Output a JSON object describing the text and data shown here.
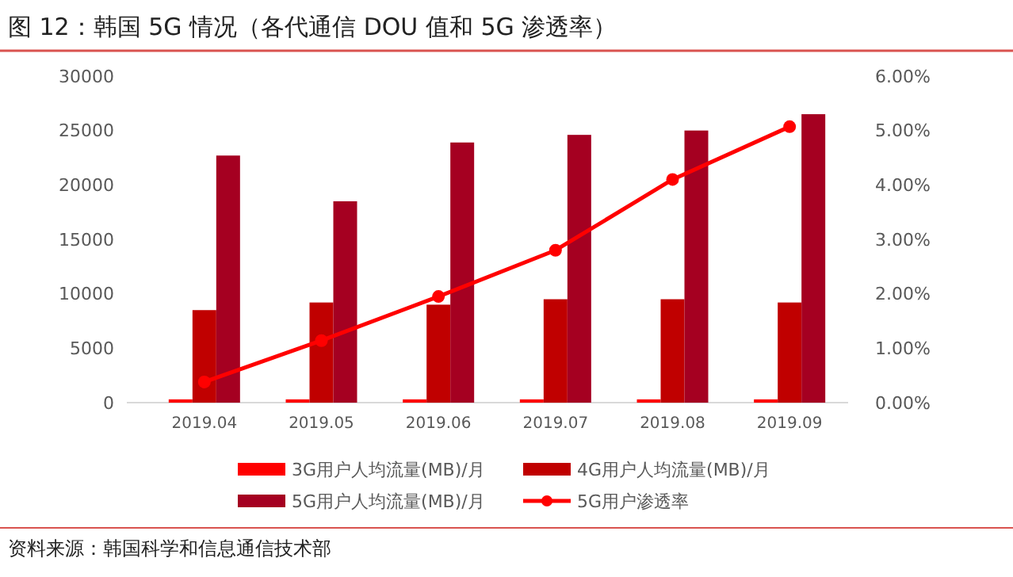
{
  "chart_data": {
    "type": "bar",
    "title": "图 12：韩国 5G 情况（各代通信 DOU 值和 5G 渗透率）",
    "annotations": [
      "资料来源：韩国科学和信息通信技术部"
    ],
    "categories": [
      "2019.04",
      "2019.05",
      "2019.06",
      "2019.07",
      "2019.08",
      "2019.09"
    ],
    "series": [
      {
        "name": "3G用户人均流量(MB)/月",
        "color": "#ff0000",
        "values": [
          300,
          300,
          300,
          300,
          300,
          300
        ]
      },
      {
        "name": "4G用户人均流量(MB)/月",
        "color": "#c00000",
        "values": [
          8500,
          9200,
          9000,
          9500,
          9500,
          9200
        ]
      },
      {
        "name": "5G用户人均流量(MB)/月",
        "color": "#a50021",
        "values": [
          22700,
          18500,
          23900,
          24600,
          25000,
          26500
        ]
      },
      {
        "name": "5G用户渗透率",
        "type": "line",
        "axis": "y2",
        "color": "#ff0000",
        "marker": "circle",
        "values": [
          0.38,
          1.14,
          1.95,
          2.8,
          4.1,
          5.07
        ]
      }
    ],
    "ylim": [
      0,
      30000
    ],
    "yticks": [
      0,
      5000,
      10000,
      15000,
      20000,
      25000,
      30000
    ],
    "y2lim": [
      0,
      6
    ],
    "y2ticks": [
      {
        "value": 0,
        "label": "0.00%"
      },
      {
        "value": 1,
        "label": "1.00%"
      },
      {
        "value": 2,
        "label": "2.00%"
      },
      {
        "value": 3,
        "label": "3.00%"
      },
      {
        "value": 4,
        "label": "4.00%"
      },
      {
        "value": 5,
        "label": "5.00%"
      },
      {
        "value": 6,
        "label": "6.00%"
      }
    ],
    "grid": false,
    "legend": "bottom"
  }
}
